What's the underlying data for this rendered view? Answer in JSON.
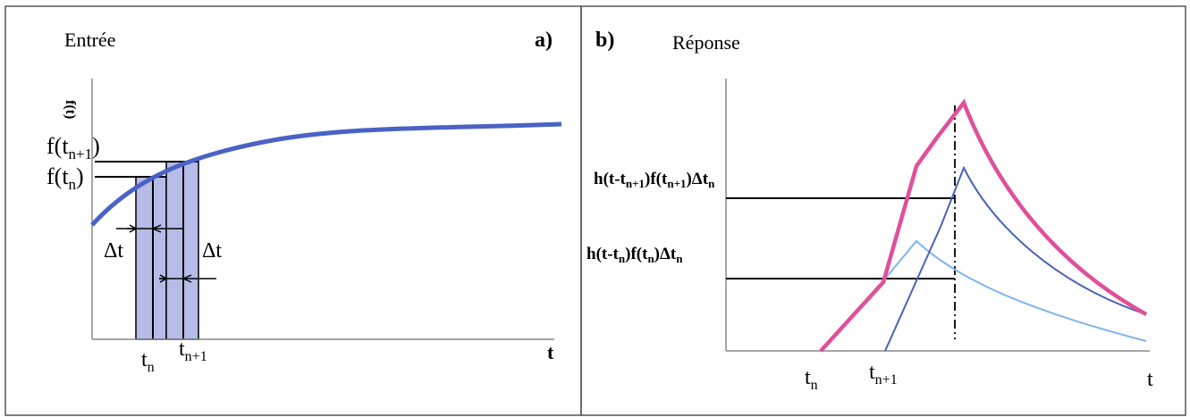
{
  "panel_a": {
    "header": "Entrée",
    "panel_label": "a)",
    "y_axis_label": "f(t)",
    "x_axis_label": "t",
    "f_tn1_label": {
      "main": "f(t",
      "sub": "n+1",
      "close": ")"
    },
    "f_tn_label": {
      "main": "f(t",
      "sub": "n",
      "close": ")"
    },
    "delta_left": "Δt",
    "delta_right": "Δt",
    "tn_label": {
      "main": "t",
      "sub": "n"
    },
    "tn1_label": {
      "main": "t",
      "sub": "n+1"
    },
    "curve_color": "#4a62c4",
    "bar_fill": "#b6bce8"
  },
  "panel_b": {
    "panel_label": "b)",
    "header": "Réponse",
    "x_axis_label": "t",
    "label_upper": {
      "p1": "h(t-t",
      "s1": "n+1",
      "p2": ")f(t",
      "s2": "n+1",
      "p3": ")Δt",
      "s3": "n"
    },
    "label_lower": {
      "p1": "h(t-t",
      "s1": "n",
      "p2": ")f(t",
      "s2": "n",
      "p3": ")Δt",
      "s3": "n"
    },
    "tn_label": {
      "main": "t",
      "sub": "n"
    },
    "tn1_label": {
      "main": "t",
      "sub": "n+1"
    },
    "colors": {
      "total": "#e0509a",
      "response_n1": "#4a62b8",
      "response_n": "#7fb4f0"
    }
  }
}
